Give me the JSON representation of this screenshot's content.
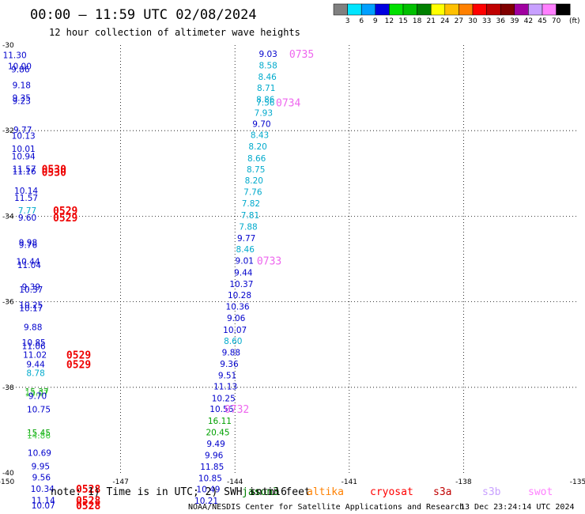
{
  "header": {
    "title": "00:00 — 11:59 UTC 02/08/2024",
    "subtitle": "12 hour collection of altimeter wave heights"
  },
  "colorbar": {
    "unit_label": "(ft)",
    "bins": [
      {
        "label": "3",
        "color": "#808080"
      },
      {
        "label": "6",
        "color": "#00e5ff"
      },
      {
        "label": "9",
        "color": "#00a0ff"
      },
      {
        "label": "12",
        "color": "#0000e0"
      },
      {
        "label": "15",
        "color": "#00e000"
      },
      {
        "label": "18",
        "color": "#00c000"
      },
      {
        "label": "21",
        "color": "#008000"
      },
      {
        "label": "24",
        "color": "#ffff00"
      },
      {
        "label": "27",
        "color": "#ffc000"
      },
      {
        "label": "30",
        "color": "#ff8000"
      },
      {
        "label": "33",
        "color": "#ff0000"
      },
      {
        "label": "36",
        "color": "#c00000"
      },
      {
        "label": "39",
        "color": "#800000"
      },
      {
        "label": "42",
        "color": "#a000a0"
      },
      {
        "label": "45",
        "color": "#c8a0ff"
      },
      {
        "label": "70",
        "color": "#ff80ff"
      },
      {
        "label": "",
        "color": "#000000"
      }
    ]
  },
  "legend": {
    "note": "note: 1) Time is in UTC; 2) SWH is in feet",
    "missions": [
      {
        "name": "jason3",
        "color": "#008000"
      },
      {
        "name": "sntnl6",
        "color": "#000000"
      },
      {
        "name": "altika",
        "color": "#ff8000"
      },
      {
        "name": "cryosat",
        "color": "#ff0000"
      },
      {
        "name": "s3a",
        "color": "#c00000"
      },
      {
        "name": "s3b",
        "color": "#c8a0ff"
      },
      {
        "name": "swot",
        "color": "#ff80ff"
      }
    ]
  },
  "footer": {
    "credit": "NOAA/NESDIS Center for Satellite Applications and Research",
    "timestamp": "13 Dec 23:24:14 UTC 2024"
  },
  "chart_data": {
    "type": "scatter",
    "x_unit": "longitude",
    "y_unit": "latitude",
    "xlim": [
      -150,
      -135
    ],
    "ylim": [
      -40,
      -30
    ],
    "x_ticks": [
      "-150",
      "-147",
      "-144",
      "-141",
      "-138",
      "-135"
    ],
    "y_ticks": [
      "-30",
      "-32",
      "-34",
      "-36",
      "-38",
      "-40"
    ],
    "grid": "dotted",
    "colors": {
      "blue": "#0000cc",
      "cyan": "#00aacc",
      "green": "#00a000",
      "lightgreen": "#44cc44",
      "red": "#ee0000",
      "pink": "#ee66ee"
    },
    "points": [
      {
        "lon": -149.78,
        "lat": -30.23,
        "v": "11.30",
        "c": "blue"
      },
      {
        "lon": -149.65,
        "lat": -30.49,
        "v": "10.00",
        "c": "blue"
      },
      {
        "lon": -149.63,
        "lat": -30.56,
        "v": "9.86",
        "c": "blue"
      },
      {
        "lon": -149.6,
        "lat": -30.93,
        "v": "9.18",
        "c": "blue"
      },
      {
        "lon": -149.6,
        "lat": -31.23,
        "v": "9.35",
        "c": "blue"
      },
      {
        "lon": -149.6,
        "lat": -31.3,
        "v": "9.23",
        "c": "blue"
      },
      {
        "lon": -149.57,
        "lat": -31.98,
        "v": "9.77",
        "c": "blue"
      },
      {
        "lon": -149.55,
        "lat": -32.12,
        "v": "10.13",
        "c": "blue"
      },
      {
        "lon": -149.55,
        "lat": -32.42,
        "v": "10.01",
        "c": "blue"
      },
      {
        "lon": -149.55,
        "lat": -32.6,
        "v": "10.94",
        "c": "blue"
      },
      {
        "lon": -149.53,
        "lat": -32.89,
        "v": "11.57",
        "c": "blue"
      },
      {
        "lon": -149.53,
        "lat": -32.95,
        "v": "11.16",
        "c": "blue"
      },
      {
        "lon": -149.48,
        "lat": -33.4,
        "v": "10.14",
        "c": "blue"
      },
      {
        "lon": -149.48,
        "lat": -33.57,
        "v": "11.57",
        "c": "blue"
      },
      {
        "lon": -149.45,
        "lat": -33.86,
        "v": "7.77",
        "c": "cyan"
      },
      {
        "lon": -149.45,
        "lat": -34.03,
        "v": "9.60",
        "c": "blue"
      },
      {
        "lon": -149.43,
        "lat": -34.61,
        "v": "9.98",
        "c": "blue"
      },
      {
        "lon": -149.43,
        "lat": -34.67,
        "v": "9.76",
        "c": "blue"
      },
      {
        "lon": -149.43,
        "lat": -35.06,
        "v": "10.44",
        "c": "blue"
      },
      {
        "lon": -149.4,
        "lat": -35.14,
        "v": "11.04",
        "c": "blue"
      },
      {
        "lon": -149.35,
        "lat": -35.65,
        "v": "9.39",
        "c": "blue"
      },
      {
        "lon": -149.35,
        "lat": -35.71,
        "v": "10.37",
        "c": "blue"
      },
      {
        "lon": -149.35,
        "lat": -36.07,
        "v": "10.25",
        "c": "blue"
      },
      {
        "lon": -149.35,
        "lat": -36.15,
        "v": "10.17",
        "c": "blue"
      },
      {
        "lon": -149.3,
        "lat": -36.59,
        "v": "9.88",
        "c": "blue"
      },
      {
        "lon": -149.28,
        "lat": -36.95,
        "v": "10.85",
        "c": "blue"
      },
      {
        "lon": -149.28,
        "lat": -37.03,
        "v": "11.06",
        "c": "blue"
      },
      {
        "lon": -149.25,
        "lat": -37.24,
        "v": "11.02",
        "c": "blue"
      },
      {
        "lon": -149.23,
        "lat": -37.46,
        "v": "9.44",
        "c": "blue"
      },
      {
        "lon": -149.23,
        "lat": -37.66,
        "v": "8.78",
        "c": "cyan"
      },
      {
        "lon": -149.2,
        "lat": -38.1,
        "v": "15.37",
        "c": "green"
      },
      {
        "lon": -149.2,
        "lat": -38.13,
        "v": "14.07",
        "c": "lightgreen"
      },
      {
        "lon": -149.18,
        "lat": -38.2,
        "v": "9.70",
        "c": "blue"
      },
      {
        "lon": -149.15,
        "lat": -38.51,
        "v": "10.75",
        "c": "blue"
      },
      {
        "lon": -149.15,
        "lat": -39.06,
        "v": "15.45",
        "c": "green"
      },
      {
        "lon": -149.15,
        "lat": -39.12,
        "v": "14.86",
        "c": "lightgreen"
      },
      {
        "lon": -149.13,
        "lat": -39.53,
        "v": "10.69",
        "c": "blue"
      },
      {
        "lon": -149.1,
        "lat": -39.84,
        "v": "9.95",
        "c": "blue"
      },
      {
        "lon": -149.08,
        "lat": -40.1,
        "v": "9.56",
        "c": "blue"
      },
      {
        "lon": -149.05,
        "lat": -40.37,
        "v": "10.34",
        "c": "blue"
      },
      {
        "lon": -149.03,
        "lat": -40.64,
        "v": "11.14",
        "c": "blue"
      },
      {
        "lon": -149.03,
        "lat": -40.76,
        "v": "10.07",
        "c": "blue"
      },
      {
        "lon": -143.13,
        "lat": -30.2,
        "v": "9.03",
        "c": "blue"
      },
      {
        "lon": -143.13,
        "lat": -30.47,
        "v": "8.58",
        "c": "cyan"
      },
      {
        "lon": -143.15,
        "lat": -30.74,
        "v": "8.46",
        "c": "cyan"
      },
      {
        "lon": -143.18,
        "lat": -31.0,
        "v": "8.71",
        "c": "cyan"
      },
      {
        "lon": -143.2,
        "lat": -31.27,
        "v": "8.86",
        "c": "cyan"
      },
      {
        "lon": -143.2,
        "lat": -31.34,
        "v": "7.56",
        "c": "cyan"
      },
      {
        "lon": -143.25,
        "lat": -31.58,
        "v": "7.93",
        "c": "cyan"
      },
      {
        "lon": -143.3,
        "lat": -31.84,
        "v": "9.70",
        "c": "blue"
      },
      {
        "lon": -143.35,
        "lat": -32.1,
        "v": "8.43",
        "c": "cyan"
      },
      {
        "lon": -143.4,
        "lat": -32.37,
        "v": "8.20",
        "c": "cyan"
      },
      {
        "lon": -143.43,
        "lat": -32.64,
        "v": "8.66",
        "c": "cyan"
      },
      {
        "lon": -143.45,
        "lat": -32.9,
        "v": "8.75",
        "c": "cyan"
      },
      {
        "lon": -143.5,
        "lat": -33.16,
        "v": "8.20",
        "c": "cyan"
      },
      {
        "lon": -143.53,
        "lat": -33.43,
        "v": "7.76",
        "c": "cyan"
      },
      {
        "lon": -143.58,
        "lat": -33.7,
        "v": "7.82",
        "c": "cyan"
      },
      {
        "lon": -143.6,
        "lat": -33.97,
        "v": "7.81",
        "c": "cyan"
      },
      {
        "lon": -143.65,
        "lat": -34.24,
        "v": "7.88",
        "c": "cyan"
      },
      {
        "lon": -143.7,
        "lat": -34.51,
        "v": "9.77",
        "c": "blue"
      },
      {
        "lon": -143.73,
        "lat": -34.77,
        "v": "8.46",
        "c": "cyan"
      },
      {
        "lon": -143.75,
        "lat": -35.04,
        "v": "9.01",
        "c": "blue"
      },
      {
        "lon": -143.78,
        "lat": -35.31,
        "v": "9.44",
        "c": "blue"
      },
      {
        "lon": -143.83,
        "lat": -35.58,
        "v": "10.37",
        "c": "blue"
      },
      {
        "lon": -143.88,
        "lat": -35.84,
        "v": "10.28",
        "c": "blue"
      },
      {
        "lon": -143.93,
        "lat": -36.11,
        "v": "10.36",
        "c": "blue"
      },
      {
        "lon": -143.97,
        "lat": -36.38,
        "v": "9.06",
        "c": "blue"
      },
      {
        "lon": -144.0,
        "lat": -36.65,
        "v": "10.07",
        "c": "blue"
      },
      {
        "lon": -144.05,
        "lat": -36.91,
        "v": "8.60",
        "c": "cyan"
      },
      {
        "lon": -144.1,
        "lat": -37.18,
        "v": "9.88",
        "c": "blue"
      },
      {
        "lon": -144.15,
        "lat": -37.45,
        "v": "9.36",
        "c": "blue"
      },
      {
        "lon": -144.2,
        "lat": -37.72,
        "v": "9.51",
        "c": "blue"
      },
      {
        "lon": -144.25,
        "lat": -37.98,
        "v": "11.13",
        "c": "blue"
      },
      {
        "lon": -144.3,
        "lat": -38.25,
        "v": "10.25",
        "c": "blue"
      },
      {
        "lon": -144.35,
        "lat": -38.5,
        "v": "10.56",
        "c": "blue"
      },
      {
        "lon": -144.4,
        "lat": -38.78,
        "v": "16.11",
        "c": "green"
      },
      {
        "lon": -144.45,
        "lat": -39.05,
        "v": "20.45",
        "c": "green"
      },
      {
        "lon": -144.5,
        "lat": -39.32,
        "v": "9.49",
        "c": "blue"
      },
      {
        "lon": -144.55,
        "lat": -39.58,
        "v": "9.96",
        "c": "blue"
      },
      {
        "lon": -144.6,
        "lat": -39.85,
        "v": "11.85",
        "c": "blue"
      },
      {
        "lon": -144.65,
        "lat": -40.12,
        "v": "10.85",
        "c": "blue"
      },
      {
        "lon": -144.7,
        "lat": -40.38,
        "v": "10.49",
        "c": "blue"
      },
      {
        "lon": -144.75,
        "lat": -40.65,
        "v": "10.21",
        "c": "blue"
      }
    ],
    "pass_labels": [
      {
        "lon": -142.25,
        "lat": -30.2,
        "t": "0735",
        "c": "pink"
      },
      {
        "lon": -142.6,
        "lat": -31.34,
        "t": "0734",
        "c": "pink"
      },
      {
        "lon": -143.1,
        "lat": -35.04,
        "t": "0733",
        "c": "pink"
      },
      {
        "lon": -143.95,
        "lat": -38.5,
        "t": "0732",
        "c": "pink"
      },
      {
        "lon": -148.75,
        "lat": -32.89,
        "t": "0530",
        "c": "red"
      },
      {
        "lon": -148.75,
        "lat": -32.97,
        "t": "0530",
        "c": "red"
      },
      {
        "lon": -148.45,
        "lat": -33.86,
        "t": "0529",
        "c": "red"
      },
      {
        "lon": -148.45,
        "lat": -34.03,
        "t": "0529",
        "c": "red"
      },
      {
        "lon": -148.1,
        "lat": -37.24,
        "t": "0529",
        "c": "red"
      },
      {
        "lon": -148.1,
        "lat": -37.46,
        "t": "0529",
        "c": "red"
      },
      {
        "lon": -147.85,
        "lat": -40.37,
        "t": "0528",
        "c": "red"
      },
      {
        "lon": -147.85,
        "lat": -40.64,
        "t": "0528",
        "c": "red"
      },
      {
        "lon": -147.85,
        "lat": -40.76,
        "t": "0528",
        "c": "red"
      }
    ]
  }
}
